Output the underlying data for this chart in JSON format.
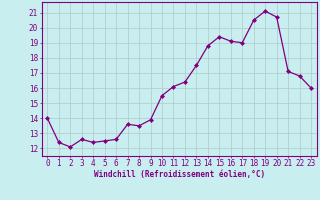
{
  "x": [
    0,
    1,
    2,
    3,
    4,
    5,
    6,
    7,
    8,
    9,
    10,
    11,
    12,
    13,
    14,
    15,
    16,
    17,
    18,
    19,
    20,
    21,
    22,
    23
  ],
  "y": [
    14.0,
    12.4,
    12.1,
    12.6,
    12.4,
    12.5,
    12.6,
    13.6,
    13.5,
    13.9,
    15.5,
    16.1,
    16.4,
    17.5,
    18.8,
    19.4,
    19.1,
    19.0,
    20.5,
    21.1,
    20.7,
    17.1,
    16.8,
    16.0
  ],
  "line_color": "#800080",
  "marker": "D",
  "marker_size": 2.0,
  "linewidth": 0.9,
  "background_color": "#c8eef0",
  "grid_color": "#b0c8c8",
  "xlabel": "Windchill (Refroidissement éolien,°C)",
  "xlabel_fontsize": 5.5,
  "tick_fontsize": 5.5,
  "ylabel_ticks": [
    12,
    13,
    14,
    15,
    16,
    17,
    18,
    19,
    20,
    21
  ],
  "ylim": [
    11.5,
    21.7
  ],
  "xlim": [
    -0.5,
    23.5
  ],
  "xtick_labels": [
    "0",
    "1",
    "2",
    "3",
    "4",
    "5",
    "6",
    "7",
    "8",
    "9",
    "10",
    "11",
    "12",
    "13",
    "14",
    "15",
    "16",
    "17",
    "18",
    "19",
    "20",
    "21",
    "22",
    "23"
  ]
}
